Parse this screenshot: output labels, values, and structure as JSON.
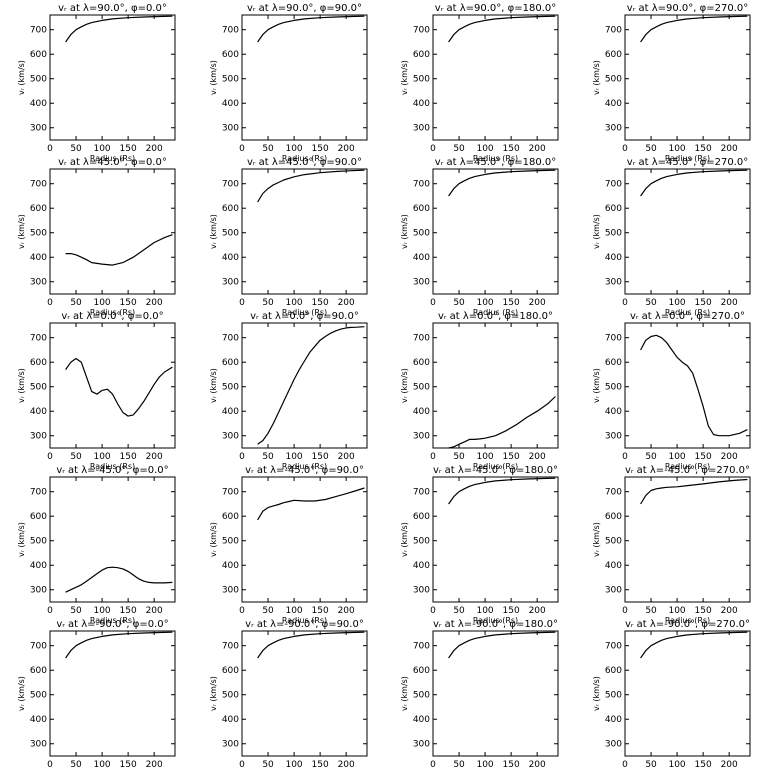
{
  "figure": {
    "rows": 5,
    "cols": 4,
    "axes": {
      "xlabel": "Radius (Rs)",
      "ylabel": "vᵣ (km/s)",
      "xlim": [
        0,
        240
      ],
      "ylim": [
        250,
        760
      ],
      "xticks": [
        0,
        50,
        100,
        150,
        200
      ],
      "yticks": [
        300,
        400,
        500,
        600,
        700
      ],
      "grid": false
    }
  },
  "chart_data": [
    {
      "type": "line",
      "title": "vᵣ at λ=90.0°, φ=0.0°",
      "x": [
        30,
        40,
        50,
        60,
        70,
        80,
        100,
        120,
        150,
        180,
        210,
        235
      ],
      "y": [
        650,
        680,
        700,
        712,
        722,
        729,
        738,
        744,
        749,
        752,
        754,
        755
      ]
    },
    {
      "type": "line",
      "title": "vᵣ at λ=90.0°, φ=90.0°",
      "x": [
        30,
        40,
        50,
        60,
        70,
        80,
        100,
        120,
        150,
        180,
        210,
        235
      ],
      "y": [
        650,
        680,
        700,
        712,
        722,
        729,
        738,
        744,
        749,
        752,
        754,
        755
      ]
    },
    {
      "type": "line",
      "title": "vᵣ at λ=90.0°, φ=180.0°",
      "x": [
        30,
        40,
        50,
        60,
        70,
        80,
        100,
        120,
        150,
        180,
        210,
        235
      ],
      "y": [
        650,
        680,
        700,
        712,
        722,
        729,
        738,
        744,
        749,
        752,
        754,
        755
      ]
    },
    {
      "type": "line",
      "title": "vᵣ at λ=90.0°, φ=270.0°",
      "x": [
        30,
        40,
        50,
        60,
        70,
        80,
        100,
        120,
        150,
        180,
        210,
        235
      ],
      "y": [
        650,
        680,
        700,
        712,
        722,
        729,
        738,
        744,
        749,
        752,
        754,
        755
      ]
    },
    {
      "type": "line",
      "title": "vᵣ at λ=45.0°, φ=0.0°",
      "x": [
        30,
        40,
        50,
        60,
        70,
        80,
        100,
        120,
        140,
        160,
        180,
        200,
        220,
        235
      ],
      "y": [
        415,
        415,
        410,
        400,
        390,
        378,
        372,
        368,
        378,
        400,
        430,
        460,
        480,
        492
      ]
    },
    {
      "type": "line",
      "title": "vᵣ at λ=45.0°, φ=90.0°",
      "x": [
        30,
        40,
        50,
        60,
        70,
        80,
        100,
        120,
        150,
        180,
        210,
        235
      ],
      "y": [
        625,
        660,
        680,
        695,
        705,
        715,
        728,
        737,
        745,
        750,
        753,
        755
      ]
    },
    {
      "type": "line",
      "title": "vᵣ at λ=45.0°, φ=180.0°",
      "x": [
        30,
        40,
        50,
        60,
        70,
        80,
        100,
        120,
        150,
        180,
        210,
        235
      ],
      "y": [
        650,
        680,
        700,
        712,
        722,
        729,
        738,
        744,
        749,
        752,
        754,
        755
      ]
    },
    {
      "type": "line",
      "title": "vᵣ at λ=45.0°, φ=270.0°",
      "x": [
        30,
        40,
        50,
        60,
        70,
        80,
        100,
        120,
        150,
        180,
        210,
        235
      ],
      "y": [
        650,
        680,
        700,
        712,
        722,
        729,
        738,
        744,
        749,
        752,
        754,
        755
      ]
    },
    {
      "type": "line",
      "title": "vᵣ at λ=0.0°, φ=0.0°",
      "x": [
        30,
        40,
        50,
        60,
        70,
        80,
        90,
        100,
        110,
        120,
        130,
        140,
        150,
        160,
        170,
        180,
        190,
        200,
        210,
        220,
        235
      ],
      "y": [
        570,
        600,
        615,
        600,
        540,
        480,
        470,
        485,
        490,
        470,
        430,
        395,
        380,
        385,
        410,
        440,
        475,
        510,
        540,
        560,
        580
      ]
    },
    {
      "type": "line",
      "title": "vᵣ at λ=0.0°, φ=90.0°",
      "x": [
        30,
        40,
        50,
        60,
        70,
        80,
        90,
        100,
        110,
        120,
        130,
        140,
        150,
        160,
        170,
        180,
        190,
        200,
        210,
        220,
        235
      ],
      "y": [
        265,
        280,
        310,
        350,
        395,
        440,
        485,
        530,
        570,
        605,
        640,
        665,
        690,
        705,
        718,
        728,
        735,
        740,
        742,
        743,
        745
      ]
    },
    {
      "type": "line",
      "title": "vᵣ at λ=0.0°, φ=180.0°",
      "x": [
        30,
        40,
        50,
        60,
        70,
        80,
        90,
        100,
        120,
        140,
        160,
        180,
        200,
        220,
        235
      ],
      "y": [
        250,
        255,
        265,
        275,
        285,
        285,
        287,
        290,
        300,
        320,
        345,
        375,
        400,
        430,
        460
      ]
    },
    {
      "type": "line",
      "title": "vᵣ at λ=0.0°, φ=270.0°",
      "x": [
        30,
        40,
        50,
        60,
        70,
        80,
        90,
        100,
        110,
        120,
        130,
        140,
        150,
        160,
        170,
        180,
        200,
        220,
        235
      ],
      "y": [
        650,
        690,
        705,
        710,
        700,
        680,
        650,
        620,
        600,
        585,
        555,
        490,
        420,
        340,
        305,
        300,
        300,
        310,
        325
      ]
    },
    {
      "type": "line",
      "title": "vᵣ at λ=-45.0°, φ=0.0°",
      "x": [
        30,
        40,
        50,
        60,
        70,
        80,
        90,
        100,
        110,
        120,
        130,
        140,
        150,
        160,
        170,
        180,
        190,
        200,
        220,
        235
      ],
      "y": [
        290,
        300,
        310,
        320,
        335,
        350,
        365,
        380,
        390,
        392,
        390,
        385,
        375,
        360,
        345,
        335,
        330,
        328,
        328,
        330
      ]
    },
    {
      "type": "line",
      "title": "vᵣ at λ=-45.0°, φ=90.0°",
      "x": [
        30,
        40,
        50,
        60,
        70,
        80,
        90,
        100,
        120,
        140,
        160,
        180,
        200,
        220,
        235
      ],
      "y": [
        585,
        620,
        635,
        642,
        648,
        655,
        660,
        665,
        662,
        662,
        668,
        680,
        692,
        705,
        715
      ]
    },
    {
      "type": "line",
      "title": "vᵣ at λ=-45.0°, φ=180.0°",
      "x": [
        30,
        40,
        50,
        60,
        70,
        80,
        100,
        120,
        150,
        180,
        210,
        235
      ],
      "y": [
        650,
        680,
        700,
        712,
        722,
        729,
        738,
        744,
        749,
        752,
        754,
        755
      ]
    },
    {
      "type": "line",
      "title": "vᵣ at λ=-45.0°, φ=270.0°",
      "x": [
        30,
        40,
        50,
        60,
        70,
        80,
        100,
        120,
        150,
        180,
        210,
        235
      ],
      "y": [
        650,
        685,
        705,
        712,
        715,
        718,
        720,
        725,
        732,
        740,
        746,
        750
      ]
    },
    {
      "type": "line",
      "title": "vᵣ at λ=-90.0°, φ=0.0°",
      "x": [
        30,
        40,
        50,
        60,
        70,
        80,
        100,
        120,
        150,
        180,
        210,
        235
      ],
      "y": [
        650,
        680,
        700,
        712,
        722,
        729,
        738,
        744,
        749,
        752,
        754,
        755
      ]
    },
    {
      "type": "line",
      "title": "vᵣ at λ=-90.0°, φ=90.0°",
      "x": [
        30,
        40,
        50,
        60,
        70,
        80,
        100,
        120,
        150,
        180,
        210,
        235
      ],
      "y": [
        650,
        680,
        700,
        712,
        722,
        729,
        738,
        744,
        749,
        752,
        754,
        755
      ]
    },
    {
      "type": "line",
      "title": "vᵣ at λ=-90.0°, φ=180.0°",
      "x": [
        30,
        40,
        50,
        60,
        70,
        80,
        100,
        120,
        150,
        180,
        210,
        235
      ],
      "y": [
        650,
        680,
        700,
        712,
        722,
        729,
        738,
        744,
        749,
        752,
        754,
        755
      ]
    },
    {
      "type": "line",
      "title": "vᵣ at λ=-90.0°, φ=270.0°",
      "x": [
        30,
        40,
        50,
        60,
        70,
        80,
        100,
        120,
        150,
        180,
        210,
        235
      ],
      "y": [
        650,
        680,
        700,
        712,
        722,
        729,
        738,
        744,
        749,
        752,
        754,
        755
      ]
    }
  ]
}
